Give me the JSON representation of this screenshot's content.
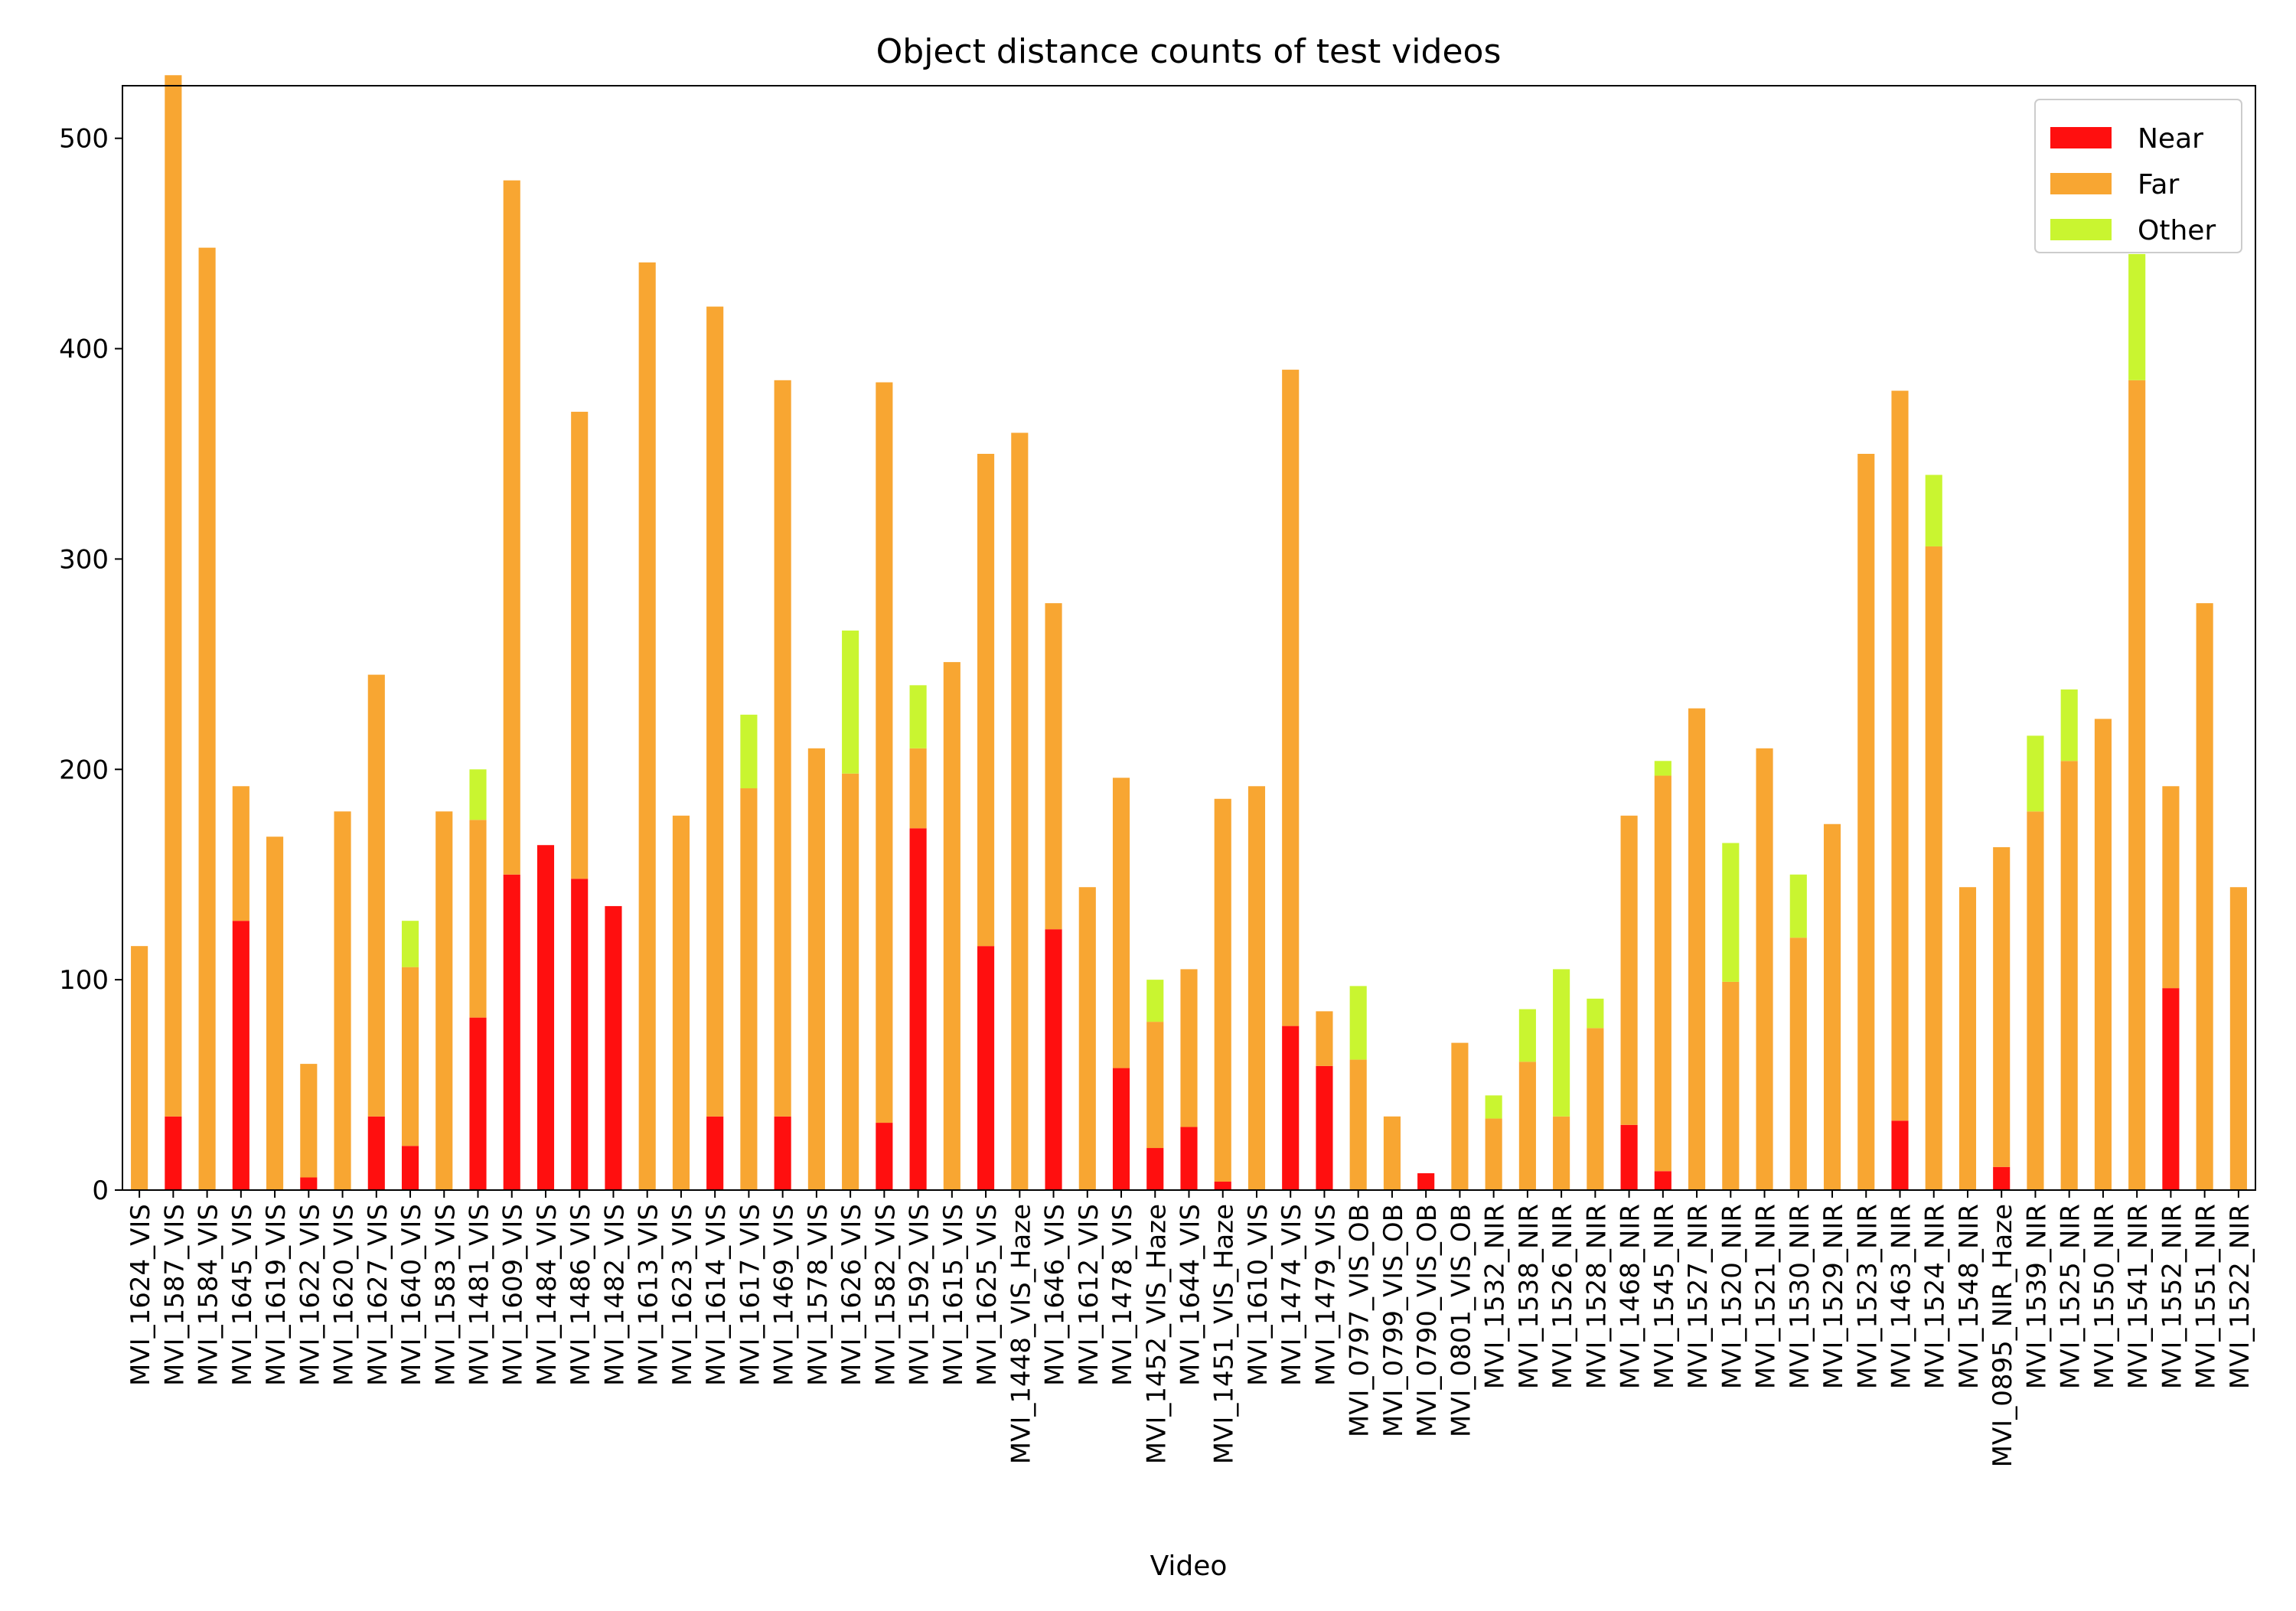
{
  "chart_data": {
    "type": "bar",
    "stacked": true,
    "title": "Object distance counts of test videos",
    "xlabel": "Video",
    "ylabel": "",
    "ylim": [
      0,
      525
    ],
    "yticks": [
      0,
      100,
      200,
      300,
      400,
      500
    ],
    "grid": false,
    "legend_position": "top-right",
    "categories": [
      "MVI_1624_VIS",
      "MVI_1587_VIS",
      "MVI_1584_VIS",
      "MVI_1645_VIS",
      "MVI_1619_VIS",
      "MVI_1622_VIS",
      "MVI_1620_VIS",
      "MVI_1627_VIS",
      "MVI_1640_VIS",
      "MVI_1583_VIS",
      "MVI_1481_VIS",
      "MVI_1609_VIS",
      "MVI_1484_VIS",
      "MVI_1486_VIS",
      "MVI_1482_VIS",
      "MVI_1613_VIS",
      "MVI_1623_VIS",
      "MVI_1614_VIS",
      "MVI_1617_VIS",
      "MVI_1469_VIS",
      "MVI_1578_VIS",
      "MVI_1626_VIS",
      "MVI_1582_VIS",
      "MVI_1592_VIS",
      "MVI_1615_VIS",
      "MVI_1625_VIS",
      "MVI_1448_VIS_Haze",
      "MVI_1646_VIS",
      "MVI_1612_VIS",
      "MVI_1478_VIS",
      "MVI_1452_VIS_Haze",
      "MVI_1644_VIS",
      "MVI_1451_VIS_Haze",
      "MVI_1610_VIS",
      "MVI_1474_VIS",
      "MVI_1479_VIS",
      "MVI_0797_VIS_OB",
      "MVI_0799_VIS_OB",
      "MVI_0790_VIS_OB",
      "MVI_0801_VIS_OB",
      "MVI_1532_NIR",
      "MVI_1538_NIR",
      "MVI_1526_NIR",
      "MVI_1528_NIR",
      "MVI_1468_NIR",
      "MVI_1545_NIR",
      "MVI_1527_NIR",
      "MVI_1520_NIR",
      "MVI_1521_NIR",
      "MVI_1530_NIR",
      "MVI_1529_NIR",
      "MVI_1523_NIR",
      "MVI_1463_NIR",
      "MVI_1524_NIR",
      "MVI_1548_NIR",
      "MVI_0895_NIR_Haze",
      "MVI_1539_NIR",
      "MVI_1525_NIR",
      "MVI_1550_NIR",
      "MVI_1541_NIR",
      "MVI_1552_NIR",
      "MVI_1551_NIR",
      "MVI_1522_NIR"
    ],
    "series": [
      {
        "name": "Near",
        "color": "#ff0f0f",
        "values": [
          0,
          35,
          0,
          128,
          0,
          6,
          0,
          35,
          21,
          0,
          82,
          150,
          164,
          148,
          135,
          0,
          0,
          35,
          0,
          35,
          0,
          0,
          32,
          172,
          0,
          116,
          0,
          124,
          0,
          58,
          20,
          30,
          4,
          0,
          78,
          59,
          0,
          0,
          8,
          0,
          0,
          0,
          0,
          0,
          31,
          9,
          0,
          0,
          0,
          0,
          0,
          0,
          33,
          0,
          0,
          11,
          0,
          0,
          0,
          0,
          96,
          0,
          0
        ]
      },
      {
        "name": "Far",
        "color": "#f8a632",
        "values": [
          116,
          495,
          448,
          64,
          168,
          54,
          180,
          210,
          85,
          180,
          94,
          330,
          0,
          222,
          0,
          441,
          178,
          385,
          191,
          350,
          210,
          198,
          352,
          38,
          251,
          234,
          360,
          155,
          144,
          138,
          60,
          75,
          182,
          192,
          312,
          26,
          62,
          35,
          0,
          70,
          34,
          61,
          35,
          77,
          147,
          188,
          229,
          99,
          210,
          120,
          174,
          350,
          347,
          306,
          144,
          152,
          180,
          204,
          224,
          385,
          96,
          279,
          144
        ]
      },
      {
        "name": "Other",
        "color": "#c9f530",
        "values": [
          0,
          0,
          0,
          0,
          0,
          0,
          0,
          0,
          22,
          0,
          24,
          0,
          0,
          0,
          0,
          0,
          0,
          0,
          35,
          0,
          0,
          68,
          0,
          30,
          0,
          0,
          0,
          0,
          0,
          0,
          20,
          0,
          0,
          0,
          0,
          0,
          35,
          0,
          0,
          0,
          11,
          25,
          70,
          14,
          0,
          7,
          0,
          66,
          0,
          30,
          0,
          0,
          0,
          34,
          0,
          0,
          36,
          34,
          0,
          60,
          0,
          0,
          0
        ]
      }
    ]
  }
}
